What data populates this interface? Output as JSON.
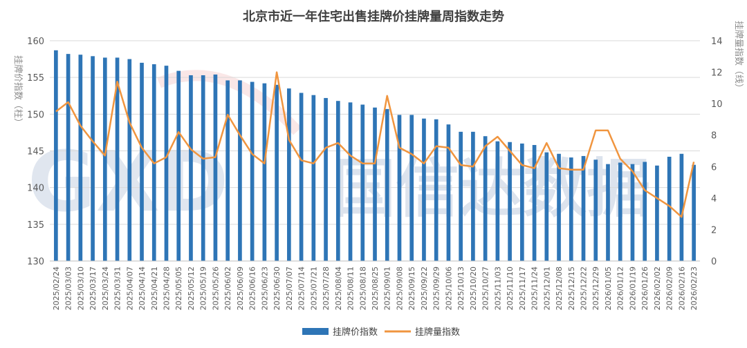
{
  "chart_data": {
    "type": "bar",
    "title": "北京市近一年住宅出售挂牌价挂牌量周指数走势",
    "ylabel_left": "挂牌价指数（柱）",
    "ylabel_right": "挂牌量指数（线）",
    "ylim_left": [
      130,
      160
    ],
    "yticks_left": [
      130,
      135,
      140,
      145,
      150,
      155,
      160
    ],
    "ylim_right": [
      0,
      14
    ],
    "yticks_right": [
      0,
      2,
      4,
      6,
      8,
      10,
      12,
      14
    ],
    "grid": true,
    "legend_position": "bottom",
    "categories": [
      "2025/02/24",
      "2025/03/03",
      "2025/03/10",
      "2025/03/17",
      "2025/03/24",
      "2025/03/31",
      "2025/04/07",
      "2025/04/14",
      "2025/04/21",
      "2025/04/28",
      "2025/05/05",
      "2025/05/12",
      "2025/05/19",
      "2025/05/26",
      "2025/06/02",
      "2025/06/09",
      "2025/06/16",
      "2025/06/23",
      "2025/06/30",
      "2025/07/07",
      "2025/07/14",
      "2025/07/21",
      "2025/07/28",
      "2025/08/04",
      "2025/08/11",
      "2025/08/18",
      "2025/08/25",
      "2025/09/01",
      "2025/09/08",
      "2025/09/15",
      "2025/09/22",
      "2025/09/29",
      "2025/10/06",
      "2025/10/13",
      "2025/10/20",
      "2025/10/27",
      "2025/11/03",
      "2025/11/10",
      "2025/11/17",
      "2025/11/24",
      "2025/12/01",
      "2025/12/08",
      "2025/12/15",
      "2025/12/22",
      "2025/12/29",
      "2026/01/05",
      "2026/01/12",
      "2026/01/19",
      "2026/01/26",
      "2026/02/02",
      "2026/02/09",
      "2026/02/16",
      "2026/02/23"
    ],
    "series": [
      {
        "name": "挂牌价指数",
        "type": "bar",
        "axis": "left",
        "color": "#2e75b6",
        "values": [
          158.7,
          158.2,
          158.1,
          157.9,
          157.7,
          157.7,
          157.5,
          157.0,
          156.8,
          156.6,
          155.9,
          155.3,
          155.3,
          155.4,
          154.6,
          154.6,
          154.4,
          154.2,
          154.0,
          153.5,
          152.9,
          152.6,
          152.2,
          151.8,
          151.6,
          151.3,
          150.9,
          150.7,
          149.9,
          149.9,
          149.4,
          149.3,
          148.6,
          147.6,
          147.6,
          147.0,
          146.3,
          146.2,
          146.0,
          145.8,
          144.8,
          144.6,
          144.1,
          144.3,
          143.8,
          143.2,
          143.4,
          143.2,
          143.5,
          143.0,
          144.2,
          144.6,
          143.1
        ]
      },
      {
        "name": "挂牌量指数",
        "type": "line",
        "axis": "right",
        "color": "#f0953f",
        "values": [
          9.5,
          10.1,
          8.6,
          7.6,
          6.7,
          11.4,
          8.8,
          7.2,
          6.2,
          6.6,
          8.2,
          7.1,
          6.5,
          6.6,
          9.3,
          8.0,
          6.8,
          6.2,
          12.0,
          7.7,
          6.4,
          6.2,
          7.2,
          7.5,
          6.7,
          6.2,
          6.2,
          10.5,
          7.2,
          6.8,
          6.2,
          7.3,
          7.2,
          6.1,
          6.0,
          7.3,
          7.9,
          7.0,
          6.1,
          5.9,
          7.5,
          5.9,
          5.8,
          5.8,
          8.3,
          8.3,
          6.5,
          5.7,
          4.5,
          4.0,
          3.5,
          2.8,
          6.3
        ]
      }
    ]
  },
  "watermark": {
    "text": "国信达数据",
    "letters": "GXD"
  }
}
